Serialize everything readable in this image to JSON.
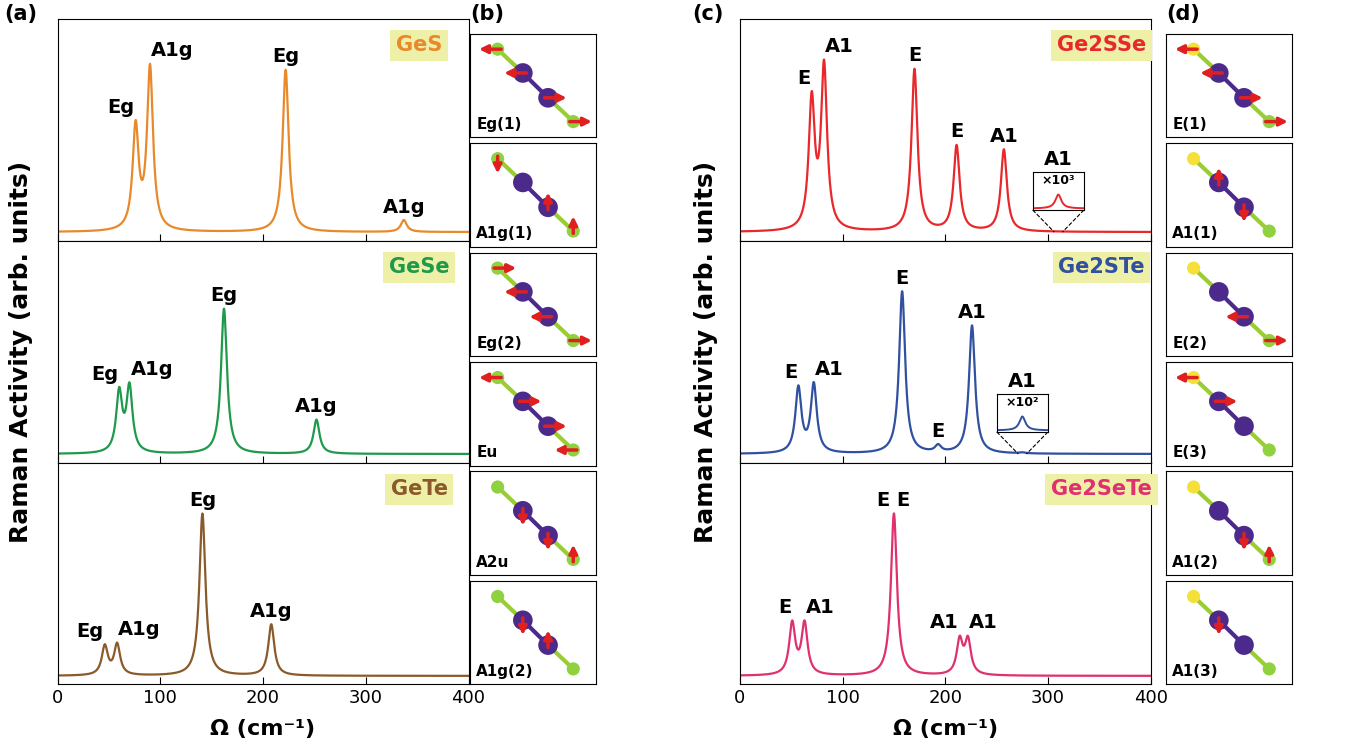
{
  "figure": {
    "x_label": "Ω (cm⁻¹)",
    "y_label": "Raman Activity (arb. units)"
  },
  "chart_data": [
    {
      "type": "line",
      "panel": "(a)",
      "title": "GeS",
      "color": "#e8892b",
      "xlim": [
        0,
        400
      ],
      "xticks": [
        0,
        100,
        200,
        300,
        400
      ],
      "ylim": [
        -0.05,
        1.25
      ],
      "tick_labels": false,
      "peaks": [
        {
          "x": 76,
          "height": 0.6,
          "label": "Eg"
        },
        {
          "x": 90,
          "height": 0.95,
          "label": "A1g"
        },
        {
          "x": 222,
          "height": 0.95,
          "label": "Eg"
        },
        {
          "x": 337,
          "height": 0.07,
          "label": "A1g"
        }
      ]
    },
    {
      "type": "line",
      "panel": "(a)",
      "title": "GeSe",
      "color": "#1f9a4a",
      "xlim": [
        0,
        400
      ],
      "xticks": [
        0,
        100,
        200,
        300,
        400
      ],
      "ylim": [
        -0.05,
        1.25
      ],
      "tick_labels": false,
      "peaks": [
        {
          "x": 60,
          "height": 0.35,
          "label": "Eg"
        },
        {
          "x": 70,
          "height": 0.38,
          "label": "A1g"
        },
        {
          "x": 162,
          "height": 0.85,
          "label": "Eg"
        },
        {
          "x": 252,
          "height": 0.2,
          "label": "A1g"
        }
      ]
    },
    {
      "type": "line",
      "panel": "(a)",
      "title": "GeTe",
      "color": "#8b5a2b",
      "xlim": [
        0,
        400
      ],
      "xticks": [
        0,
        100,
        200,
        300,
        400
      ],
      "ylim": [
        -0.05,
        1.25
      ],
      "tick_labels": "x",
      "peaks": [
        {
          "x": 46,
          "height": 0.17,
          "label": "Eg"
        },
        {
          "x": 58,
          "height": 0.18,
          "label": "A1g"
        },
        {
          "x": 141,
          "height": 0.95,
          "label": "Eg"
        },
        {
          "x": 208,
          "height": 0.3,
          "label": "A1g"
        }
      ]
    },
    {
      "type": "line",
      "panel": "(c)",
      "title": "Ge2SSe",
      "color": "#e8282b",
      "xlim": [
        0,
        400
      ],
      "xticks": [
        0,
        100,
        200,
        300,
        400
      ],
      "ylim": [
        -0.05,
        1.25
      ],
      "tick_labels": false,
      "peaks": [
        {
          "x": 70,
          "height": 0.75,
          "label": "E"
        },
        {
          "x": 82,
          "height": 0.95,
          "label": "A1"
        },
        {
          "x": 170,
          "height": 0.95,
          "label": "E"
        },
        {
          "x": 211,
          "height": 0.5,
          "label": "E"
        },
        {
          "x": 257,
          "height": 0.48,
          "label": "A1"
        },
        {
          "x": 310,
          "height": 0.0005,
          "label": "A1",
          "inset": {
            "label": "×10³",
            "magnification": 1000
          }
        }
      ]
    },
    {
      "type": "line",
      "panel": "(c)",
      "title": "Ge2STe",
      "color": "#3050a0",
      "xlim": [
        0,
        400
      ],
      "xticks": [
        0,
        100,
        200,
        300,
        400
      ],
      "ylim": [
        -0.05,
        1.25
      ],
      "tick_labels": false,
      "peaks": [
        {
          "x": 57,
          "height": 0.38,
          "label": "E"
        },
        {
          "x": 72,
          "height": 0.4,
          "label": "A1"
        },
        {
          "x": 158,
          "height": 0.95,
          "label": "E"
        },
        {
          "x": 193,
          "height": 0.04,
          "label": "E"
        },
        {
          "x": 226,
          "height": 0.75,
          "label": "A1"
        },
        {
          "x": 275,
          "height": 0.005,
          "label": "A1",
          "inset": {
            "label": "×10²",
            "magnification": 100
          }
        }
      ]
    },
    {
      "type": "line",
      "panel": "(c)",
      "title": "Ge2SeTe",
      "color": "#e03070",
      "xlim": [
        0,
        400
      ],
      "xticks": [
        0,
        100,
        200,
        300,
        400
      ],
      "ylim": [
        -0.05,
        1.25
      ],
      "tick_labels": "x",
      "peaks": [
        {
          "x": 51,
          "height": 0.3,
          "label": "E"
        },
        {
          "x": 63,
          "height": 0.3,
          "label": "A1"
        },
        {
          "x": 150,
          "height": 0.95,
          "label": "E E"
        },
        {
          "x": 214,
          "height": 0.2,
          "label": "A1"
        },
        {
          "x": 222,
          "height": 0.2,
          "label": "A1"
        }
      ]
    }
  ],
  "mode_diagrams": [
    {
      "panel": "(b)",
      "modes": [
        "Eg(1)",
        "A1g(1)",
        "Eg(2)",
        "Eu",
        "A2u",
        "A1g(2)"
      ]
    },
    {
      "panel": "(d)",
      "modes": [
        "E(1)",
        "A1(1)",
        "E(2)",
        "E(3)",
        "A1(2)",
        "A1(3)"
      ]
    }
  ]
}
